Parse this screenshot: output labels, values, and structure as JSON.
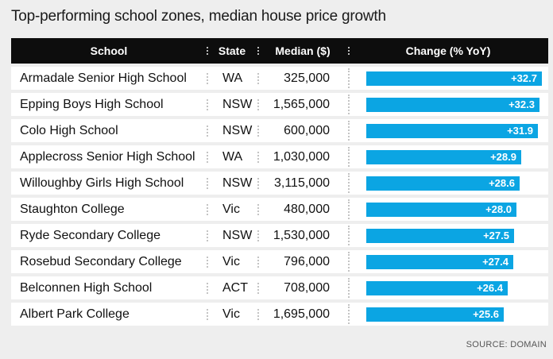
{
  "title": "Top-performing school zones, median house price growth",
  "columns": {
    "school": "School",
    "state": "State",
    "median": "Median ($)",
    "change": "Change (% YoY)"
  },
  "rows": [
    {
      "school": "Armadale Senior High School",
      "state": "WA",
      "median": "325,000",
      "change": "+32.7"
    },
    {
      "school": "Epping Boys High School",
      "state": "NSW",
      "median": "1,565,000",
      "change": "+32.3"
    },
    {
      "school": "Colo High School",
      "state": "NSW",
      "median": "600,000",
      "change": "+31.9"
    },
    {
      "school": "Applecross Senior High School",
      "state": "WA",
      "median": "1,030,000",
      "change": "+28.9"
    },
    {
      "school": "Willoughby Girls High School",
      "state": "NSW",
      "median": "3,115,000",
      "change": "+28.6"
    },
    {
      "school": "Staughton College",
      "state": "Vic",
      "median": "480,000",
      "change": "+28.0"
    },
    {
      "school": "Ryde Secondary College",
      "state": "NSW",
      "median": "1,530,000",
      "change": "+27.5"
    },
    {
      "school": "Rosebud Secondary College",
      "state": "Vic",
      "median": "796,000",
      "change": "+27.4"
    },
    {
      "school": "Belconnen High School",
      "state": "ACT",
      "median": "708,000",
      "change": "+26.4"
    },
    {
      "school": "Albert Park College",
      "state": "Vic",
      "median": "1,695,000",
      "change": "+25.6"
    }
  ],
  "source": "SOURCE: DOMAIN",
  "colors": {
    "bar": "#0ba5e3",
    "header_bg": "#0d0d0d",
    "page_bg": "#eeeeee"
  },
  "chart_data": {
    "type": "table",
    "title": "Top-performing school zones, median house price growth",
    "columns": [
      "School",
      "State",
      "Median ($)",
      "Change (% YoY)"
    ],
    "categories": [
      "Armadale Senior High School",
      "Epping Boys High School",
      "Colo High School",
      "Applecross Senior High School",
      "Willoughby Girls High School",
      "Staughton College",
      "Ryde Secondary College",
      "Rosebud Secondary College",
      "Belconnen High School",
      "Albert Park College"
    ],
    "states": [
      "WA",
      "NSW",
      "NSW",
      "WA",
      "NSW",
      "Vic",
      "NSW",
      "Vic",
      "ACT",
      "Vic"
    ],
    "medians": [
      325000,
      1565000,
      600000,
      1030000,
      3115000,
      480000,
      1530000,
      796000,
      708000,
      1695000
    ],
    "values": [
      32.7,
      32.3,
      31.9,
      28.9,
      28.6,
      28.0,
      27.5,
      27.4,
      26.4,
      25.6
    ]
  }
}
